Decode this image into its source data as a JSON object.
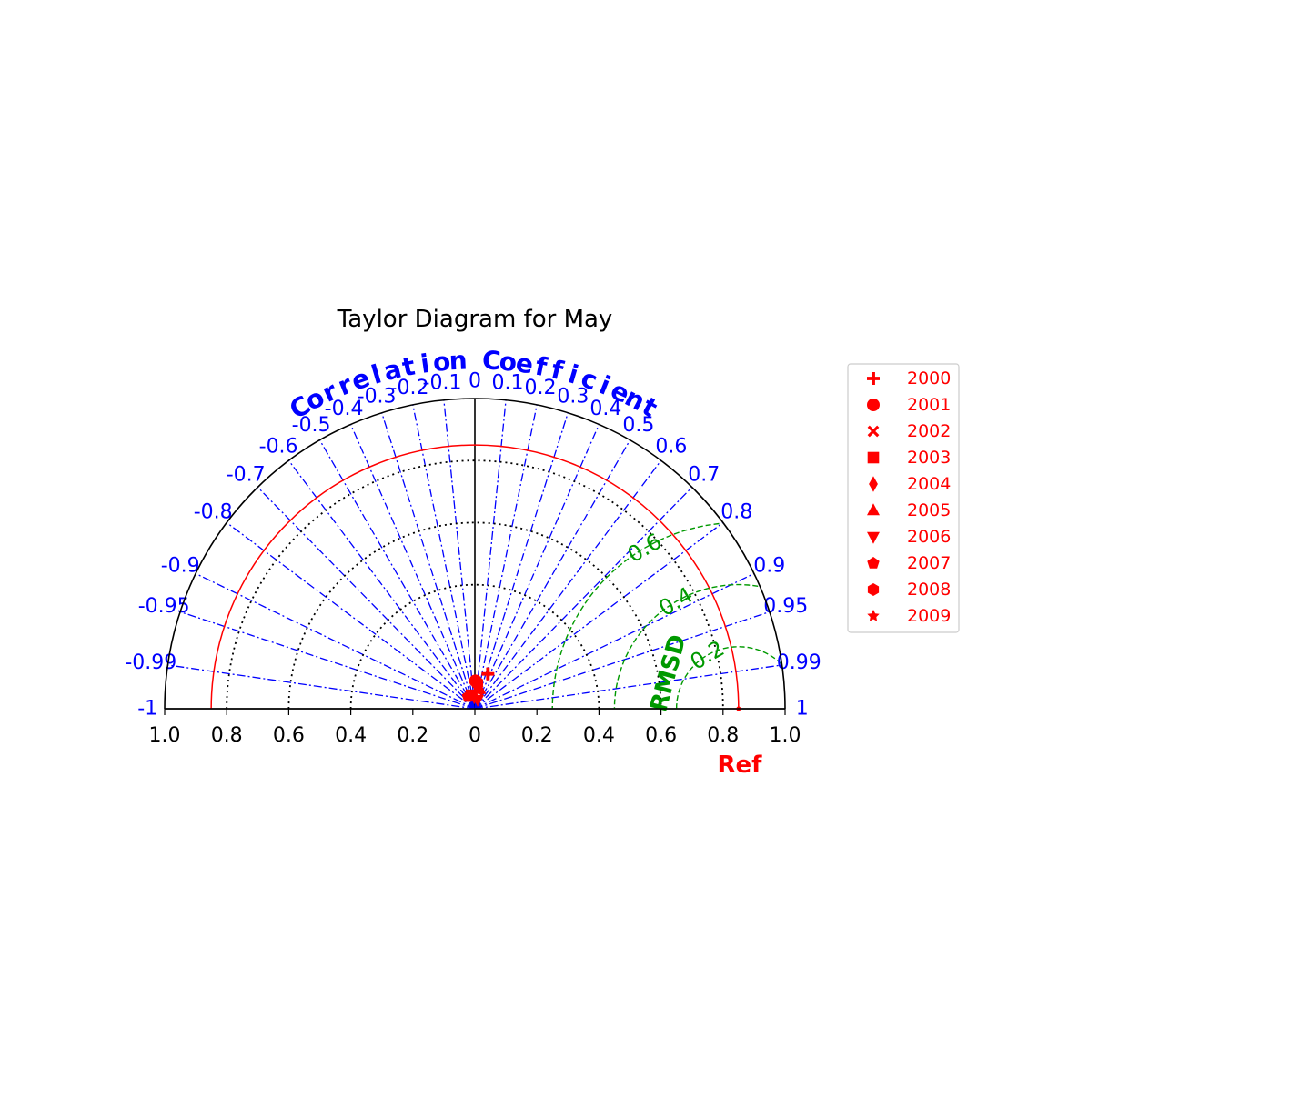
{
  "chart_data": {
    "type": "taylor",
    "title": "Taylor Diagram for May",
    "correlation_title": "Correlation Coefficient",
    "rmsd_title": "RMSD",
    "ref_label": "Ref",
    "reference_std": 0.85,
    "std_axis_max": 1.0,
    "std_ticks": [
      1.0,
      0.8,
      0.6,
      0.4,
      0.2,
      0,
      0.2,
      0.4,
      0.6,
      0.8,
      1.0
    ],
    "std_tick_labels": [
      "1.0",
      "0.8",
      "0.6",
      "0.4",
      "0.2",
      "0",
      "0.2",
      "0.4",
      "0.6",
      "0.8",
      "1.0"
    ],
    "std_gridlines": [
      0.4,
      0.6,
      0.8
    ],
    "correlation_ticks": [
      -1,
      -0.99,
      -0.95,
      -0.9,
      -0.8,
      -0.7,
      -0.6,
      -0.5,
      -0.4,
      -0.3,
      -0.2,
      -0.1,
      0,
      0.1,
      0.2,
      0.3,
      0.4,
      0.5,
      0.6,
      0.7,
      0.8,
      0.9,
      0.95,
      0.99,
      1
    ],
    "correlation_tick_labels": [
      "-1",
      "-0.99",
      "-0.95",
      "-0.9",
      "-0.8",
      "-0.7",
      "-0.6",
      "-0.5",
      "-0.4",
      "-0.3",
      "-0.2",
      "-0.1",
      "0",
      "0.1",
      "0.2",
      "0.3",
      "0.4",
      "0.5",
      "0.6",
      "0.7",
      "0.8",
      "0.9",
      "0.95",
      "0.99",
      "1"
    ],
    "rmsd_contours": [
      0.2,
      0.4,
      0.6
    ],
    "rmsd_labels": [
      "0.2",
      "0.4",
      "0.6"
    ],
    "legend_position": "right",
    "series": [
      {
        "name": "2000",
        "marker": "plus",
        "std": 0.12,
        "corr": 0.35
      },
      {
        "name": "2001",
        "marker": "circle",
        "std": 0.09,
        "corr": 0.02
      },
      {
        "name": "2002",
        "marker": "x",
        "std": 0.06,
        "corr": 0.15
      },
      {
        "name": "2003",
        "marker": "square",
        "std": 0.045,
        "corr": -0.25
      },
      {
        "name": "2004",
        "marker": "diamond",
        "std": 0.04,
        "corr": -0.05
      },
      {
        "name": "2005",
        "marker": "triangle-up",
        "std": 0.065,
        "corr": 0.25
      },
      {
        "name": "2006",
        "marker": "triangle-down",
        "std": 0.03,
        "corr": 0.3
      },
      {
        "name": "2007",
        "marker": "pentagon",
        "std": 0.045,
        "corr": -0.5
      },
      {
        "name": "2008",
        "marker": "hexagon",
        "std": 0.085,
        "corr": 0.1
      },
      {
        "name": "2009",
        "marker": "star",
        "std": 0.04,
        "corr": -0.3
      }
    ],
    "colors": {
      "markers": "#ff0000",
      "reference": "#ff0000",
      "correlation": "#0000ff",
      "rmsd": "#009900",
      "axis": "#000000"
    }
  }
}
